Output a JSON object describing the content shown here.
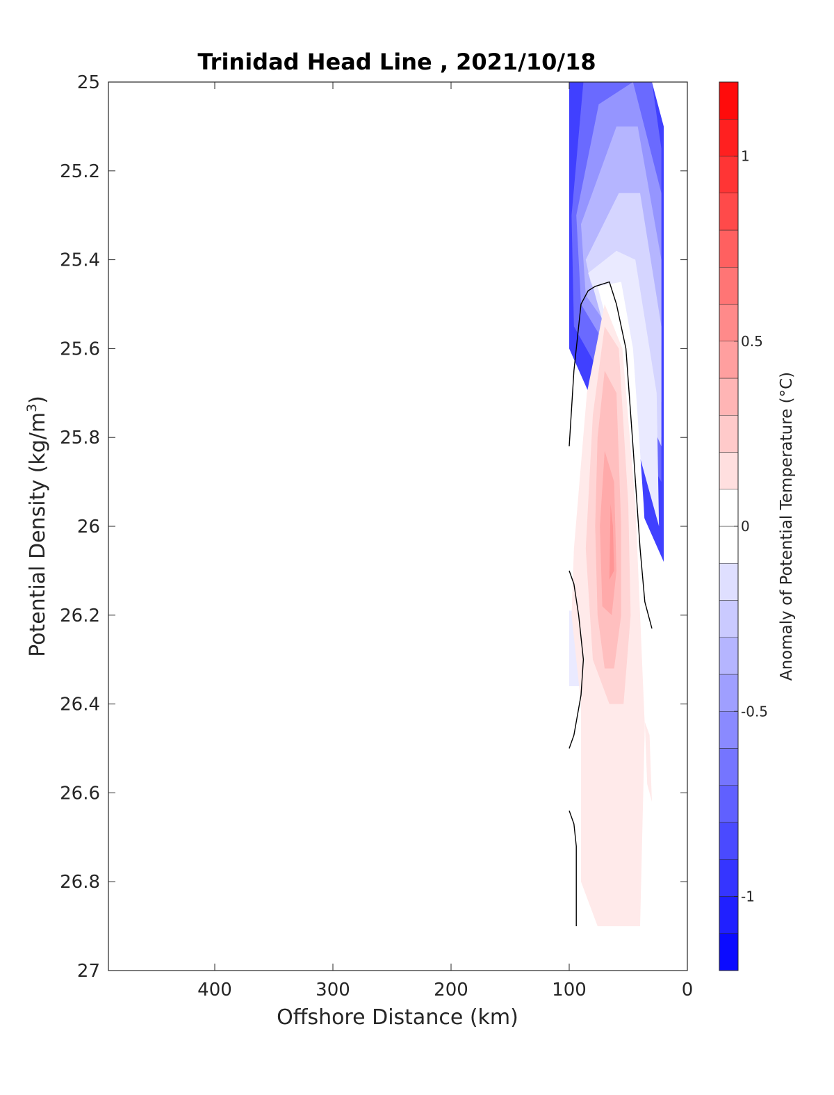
{
  "chart_data": {
    "type": "contour",
    "title": "Trinidad Head Line , 2021/10/18",
    "xlabel": "Offshore Distance (km)",
    "ylabel": "Potential Density (kg/m",
    "ylabel_sup": "3",
    "ylabel_close": ")",
    "xlim": [
      490,
      0
    ],
    "x_reversed": true,
    "ylim": [
      25,
      27
    ],
    "y_reversed": true,
    "x_ticks": [
      400,
      300,
      200,
      100,
      0
    ],
    "x_tick_labels": [
      "400",
      "300",
      "200",
      "100",
      "0"
    ],
    "y_ticks": [
      25,
      25.2,
      25.4,
      25.6,
      25.8,
      26,
      26.2,
      26.4,
      26.6,
      26.8,
      27
    ],
    "y_tick_labels": [
      "25",
      "25.2",
      "25.4",
      "25.6",
      "25.8",
      "26",
      "26.2",
      "26.4",
      "26.6",
      "26.8",
      "27"
    ],
    "colorbar": {
      "label": "Anomaly of Potential Temperature (°C)",
      "range": [
        -1.2,
        1.2
      ],
      "level_step": 0.1,
      "ticks": [
        1,
        0.5,
        0,
        -0.5,
        -1
      ],
      "tick_labels": [
        "1",
        "0.5",
        "0",
        "-0.5",
        "-1"
      ],
      "colormap": "blue-white-red",
      "low_color": "#0000ff",
      "mid_color": "#ffffff",
      "high_color": "#ff0000"
    },
    "zero_contour_color": "#000000",
    "filled_regions": [
      {
        "level": -0.9,
        "points": [
          [
            100,
            25
          ],
          [
            30,
            25
          ],
          [
            20,
            25.1
          ],
          [
            20,
            26.08
          ],
          [
            100,
            25.6
          ]
        ]
      },
      {
        "level": -0.7,
        "points": [
          [
            88,
            25
          ],
          [
            30,
            25
          ],
          [
            22,
            25.15
          ],
          [
            22,
            25.9
          ],
          [
            96,
            25.55
          ],
          [
            98,
            25.3
          ]
        ]
      },
      {
        "level": -0.5,
        "points": [
          [
            75,
            25.05
          ],
          [
            46,
            25
          ],
          [
            22,
            25.25
          ],
          [
            22,
            25.8
          ],
          [
            90,
            25.5
          ],
          [
            94,
            25.3
          ]
        ]
      },
      {
        "level": -0.35,
        "points": [
          [
            60,
            25.1
          ],
          [
            42,
            25.1
          ],
          [
            22,
            25.4
          ],
          [
            22,
            25.72
          ],
          [
            86,
            25.48
          ],
          [
            90,
            25.32
          ]
        ]
      },
      {
        "level": -0.2,
        "points": [
          [
            58,
            25.25
          ],
          [
            40,
            25.25
          ],
          [
            22,
            25.55
          ],
          [
            22,
            25.82
          ],
          [
            82,
            25.45
          ],
          [
            86,
            25.4
          ]
        ]
      },
      {
        "level": -0.1,
        "points": [
          [
            60,
            25.38
          ],
          [
            44,
            25.4
          ],
          [
            26,
            25.7
          ],
          [
            24,
            26.0
          ],
          [
            80,
            25.46
          ],
          [
            84,
            25.43
          ]
        ]
      },
      {
        "level": 0,
        "points": [
          [
            76,
            25.46
          ],
          [
            56,
            25.45
          ],
          [
            46,
            25.6
          ],
          [
            37,
            25.95
          ],
          [
            32,
            26.2
          ],
          [
            44,
            26.1
          ],
          [
            52,
            25.95
          ],
          [
            56,
            25.7
          ],
          [
            70,
            25.52
          ]
        ]
      },
      {
        "level": -0.1,
        "points": [
          [
            100,
            26.19
          ],
          [
            90,
            26.19
          ],
          [
            90,
            26.36
          ],
          [
            100,
            26.36
          ]
        ]
      },
      {
        "level": 0.1,
        "points": [
          [
            70,
            25.5
          ],
          [
            55,
            25.6
          ],
          [
            44,
            25.95
          ],
          [
            40,
            26.2
          ],
          [
            36,
            26.45
          ],
          [
            40,
            26.9
          ],
          [
            76,
            26.9
          ],
          [
            90,
            26.8
          ],
          [
            90,
            26.4
          ],
          [
            98,
            26.2
          ],
          [
            96,
            26.05
          ],
          [
            85,
            25.7
          ]
        ]
      },
      {
        "level": 0.1,
        "points": [
          [
            36,
            26.44
          ],
          [
            32,
            26.47
          ],
          [
            30,
            26.62
          ],
          [
            34,
            26.58
          ]
        ]
      },
      {
        "level": 0.2,
        "points": [
          [
            70,
            25.55
          ],
          [
            58,
            25.6
          ],
          [
            50,
            25.95
          ],
          [
            48,
            26.2
          ],
          [
            54,
            26.4
          ],
          [
            66,
            26.4
          ],
          [
            80,
            26.3
          ],
          [
            86,
            26.05
          ],
          [
            80,
            25.75
          ]
        ]
      },
      {
        "level": 0.3,
        "points": [
          [
            70,
            25.65
          ],
          [
            60,
            25.7
          ],
          [
            56,
            26.0
          ],
          [
            56,
            26.2
          ],
          [
            62,
            26.32
          ],
          [
            70,
            26.32
          ],
          [
            76,
            26.2
          ],
          [
            78,
            26.0
          ],
          [
            76,
            25.8
          ]
        ]
      },
      {
        "level": 0.4,
        "points": [
          [
            70,
            25.83
          ],
          [
            62,
            25.9
          ],
          [
            60,
            26.1
          ],
          [
            64,
            26.2
          ],
          [
            72,
            26.18
          ],
          [
            74,
            26.0
          ]
        ]
      },
      {
        "level": 0.5,
        "points": [
          [
            65,
            25.95
          ],
          [
            63,
            26.0
          ],
          [
            62,
            26.1
          ],
          [
            66,
            26.12
          ]
        ]
      }
    ],
    "zero_contour_lines": [
      [
        [
          100,
          25.82
        ],
        [
          96,
          25.65
        ],
        [
          90,
          25.5
        ],
        [
          84,
          25.47
        ],
        [
          78,
          25.46
        ],
        [
          66,
          25.45
        ],
        [
          60,
          25.5
        ],
        [
          52,
          25.6
        ],
        [
          46,
          25.82
        ],
        [
          40,
          26.05
        ],
        [
          36,
          26.17
        ],
        [
          30,
          26.23
        ]
      ],
      [
        [
          100,
          26.1
        ],
        [
          96,
          26.13
        ],
        [
          92,
          26.2
        ],
        [
          88,
          26.3
        ],
        [
          90,
          26.38
        ],
        [
          96,
          26.47
        ],
        [
          100,
          26.5
        ]
      ],
      [
        [
          100,
          26.64
        ],
        [
          96,
          26.67
        ],
        [
          94,
          26.72
        ],
        [
          94,
          26.8
        ],
        [
          94,
          26.9
        ]
      ]
    ]
  }
}
